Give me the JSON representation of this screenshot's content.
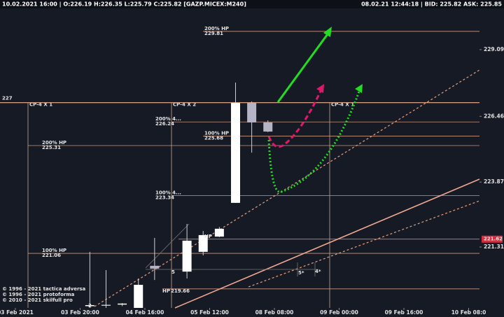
{
  "chart_data": {
    "type": "candlestick",
    "title": "10.02.2021 16:00 | O:226.19 H:226.35 L:225.79 C:225.82 [GAZP.MICEX:M240]",
    "subtitle": "08.02.21 12:44:18 | BID: 225.82 ASK: 225.85",
    "x": [
      4.6,
      5.6,
      6.6,
      7.6,
      8.6,
      10.6,
      11.6,
      12.6,
      13.6,
      14.6,
      15.6
    ],
    "open": [
      218.98,
      219.0,
      219.04,
      218.91,
      220.57,
      220.34,
      221.12,
      221.72,
      223.05,
      226.99,
      226.22
    ],
    "high": [
      221.12,
      220.4,
      219.1,
      220.07,
      221.67,
      222.22,
      221.94,
      222.1,
      227.79,
      227.05,
      226.3
    ],
    "low": [
      218.91,
      218.91,
      218.98,
      218.91,
      220.01,
      220.07,
      220.98,
      221.7,
      223.05,
      225.03,
      225.84
    ],
    "close": [
      219.02,
      219.03,
      219.08,
      219.82,
      220.46,
      221.56,
      221.78,
      222.03,
      226.99,
      226.22,
      225.86
    ],
    "up_color": "#ffffff",
    "down_color": "#b4b4c6",
    "xlim": [
      -0.95,
      28.67
    ],
    "xticks": [
      {
        "value": 0,
        "label": "03 Feb 2021"
      },
      {
        "value": 4,
        "label": "03 Feb 20:00"
      },
      {
        "value": 8,
        "label": "04 Feb 16:00"
      },
      {
        "value": 12,
        "label": "05 Feb 12:00"
      },
      {
        "value": 16,
        "label": "08 Feb 08:00"
      },
      {
        "value": 20,
        "label": "09 Feb 00:00"
      },
      {
        "value": 24,
        "label": "09 Feb 16:00"
      },
      {
        "value": 28,
        "label": "10 Feb 08:0"
      }
    ],
    "ylim": [
      218.91,
      230.66
    ],
    "yticks": [
      229.09,
      226.46,
      223.87,
      221.31
    ],
    "grid": false,
    "last_price": 221.62,
    "levels": [
      {
        "label": "200% HP",
        "value": 229.81
      },
      {
        "value": 227
      },
      {
        "label": "200% 4...",
        "value": 226.24
      },
      {
        "label": "100% HP",
        "value": 225.68
      },
      {
        "label": "200% HP",
        "value": 225.31
      },
      {
        "label": "100% 4...",
        "value": 223.34
      },
      {
        "label": "100% HP",
        "value": 221.06
      },
      {
        "label": "HP",
        "value": 219.66
      }
    ],
    "markers": [
      "CP-4 X 1",
      "CP-4 X 2",
      "CP-4 X 1"
    ],
    "annotations": [
      "5",
      "5*",
      "4*",
      "2",
      "HP"
    ],
    "footer": [
      "© 1996 - 2021 tactica adversa",
      "© 1996 - 2021 protoforma",
      "© 2010 - 2021 skilfull pro"
    ]
  }
}
